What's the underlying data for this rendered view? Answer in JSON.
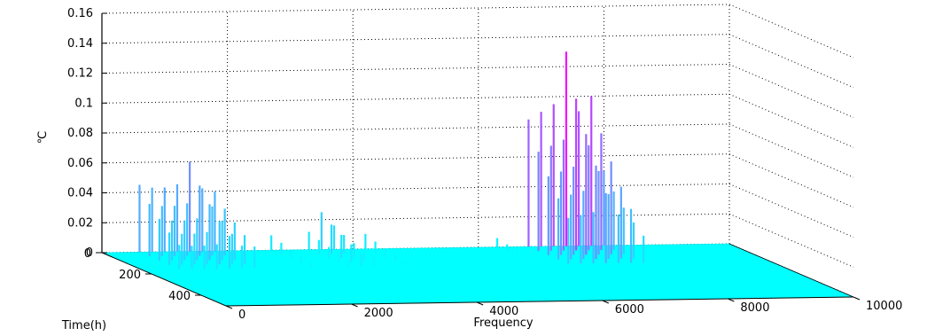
{
  "chart_data": {
    "type": "waterfall-3d",
    "xlabel": "Frequency",
    "ylabel": "Time(h)",
    "zlabel": "℃",
    "x_ticks": [
      "0",
      "2000",
      "4000",
      "6000",
      "8000",
      "10000"
    ],
    "y_ticks": [
      "0",
      "200",
      "400"
    ],
    "z_ticks": [
      "0",
      "0.02",
      "0.04",
      "0.06",
      "0.08",
      "0.1",
      "0.12",
      "0.14",
      "0.16"
    ],
    "xlim": [
      0,
      10000
    ],
    "ylim": [
      0,
      500
    ],
    "zlim": [
      0,
      0.16
    ],
    "grid": true,
    "colormap": [
      "#00ffff",
      "#ff00ff"
    ],
    "peaks": [
      {
        "frequency": 600,
        "value": 0.045
      },
      {
        "frequency": 800,
        "value": 0.043
      },
      {
        "frequency": 1000,
        "value": 0.043
      },
      {
        "frequency": 1200,
        "value": 0.045
      },
      {
        "frequency": 1400,
        "value": 0.06
      },
      {
        "frequency": 1600,
        "value": 0.042
      },
      {
        "frequency": 1800,
        "value": 0.04
      },
      {
        "frequency": 2700,
        "value": 0.01
      },
      {
        "frequency": 3300,
        "value": 0.012
      },
      {
        "frequency": 3500,
        "value": 0.025
      },
      {
        "frequency": 3700,
        "value": 0.016
      },
      {
        "frequency": 4200,
        "value": 0.01
      },
      {
        "frequency": 6300,
        "value": 0.006
      },
      {
        "frequency": 6800,
        "value": 0.085
      },
      {
        "frequency": 7000,
        "value": 0.09
      },
      {
        "frequency": 7200,
        "value": 0.095
      },
      {
        "frequency": 7400,
        "value": 0.13
      },
      {
        "frequency": 7600,
        "value": 0.09
      },
      {
        "frequency": 7800,
        "value": 0.1
      },
      {
        "frequency": 8000,
        "value": 0.05
      }
    ]
  }
}
